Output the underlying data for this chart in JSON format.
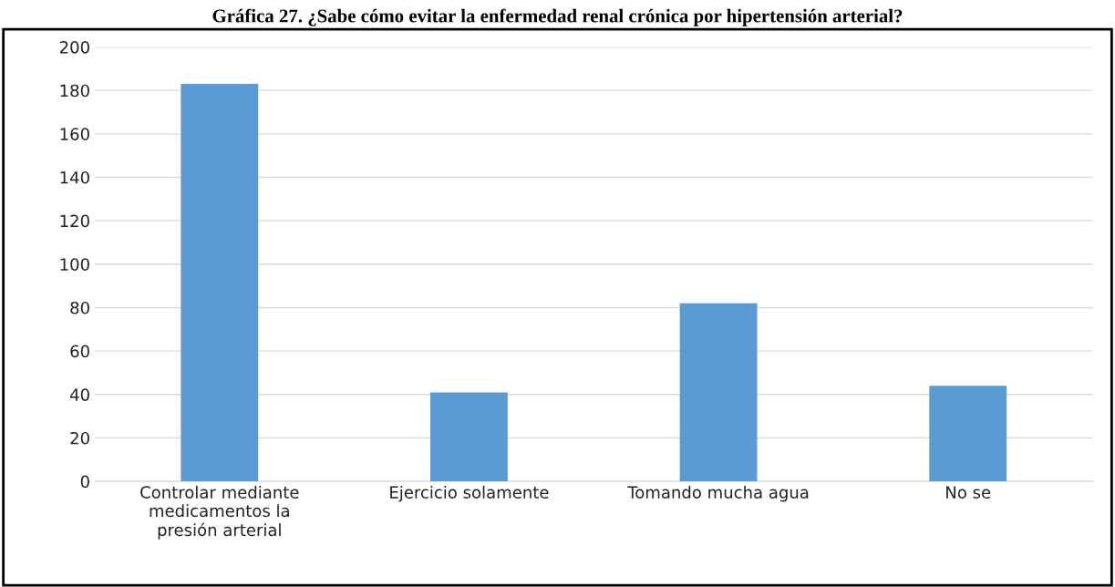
{
  "chart_data": {
    "type": "bar",
    "title": "Gráfica 27. ¿Sabe cómo evitar la enfermedad renal crónica por hipertensión arterial?",
    "categories": [
      "Controlar mediante\nmedicamentos la\npresión arterial",
      "Ejercicio solamente",
      "Tomando mucha agua",
      "No se"
    ],
    "values": [
      183,
      41,
      82,
      44
    ],
    "color": "#5b9bd5",
    "ylim": [
      0,
      200
    ],
    "yticks": [
      0,
      20,
      40,
      60,
      80,
      100,
      120,
      140,
      160,
      180,
      200
    ],
    "grid": "y",
    "legend": false
  }
}
